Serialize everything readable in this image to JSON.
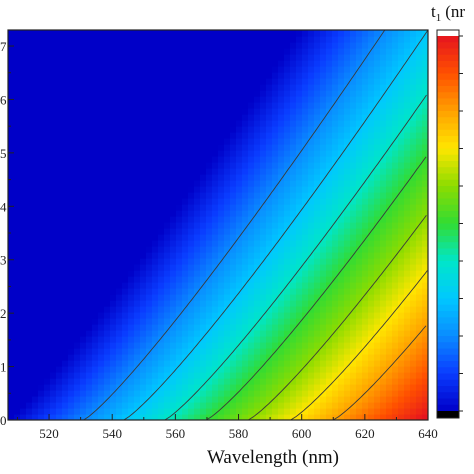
{
  "chart_data": {
    "type": "heatmap",
    "title": "",
    "xlabel": "Wavelength (nm)",
    "ylabel": "",
    "colorbar_label": "t",
    "colorbar_label_sub": "1",
    "colorbar_label_tail": "(nr",
    "x_ticks": [
      520,
      540,
      560,
      580,
      600,
      620,
      640
    ],
    "xlim": [
      507,
      640
    ],
    "y_ticks": [
      0,
      1,
      2,
      3,
      4,
      5,
      6,
      7
    ],
    "y_tick_labels": [
      "0",
      "1",
      "2",
      "3",
      "4",
      "5",
      "6",
      "7"
    ],
    "ylim": [
      0,
      7.3
    ],
    "levels": [
      0,
      0.1,
      0.2,
      0.3,
      0.4,
      0.5,
      0.6,
      0.7,
      0.8,
      0.9,
      1.0
    ],
    "contour_levels": [
      0.2,
      0.3,
      0.4,
      0.5,
      0.6,
      0.7,
      0.8
    ],
    "colormap": [
      "#0000c8",
      "#0a3cff",
      "#0a8cff",
      "#00c8ff",
      "#00e6c8",
      "#32dc32",
      "#8cdc00",
      "#ffe600",
      "#ffa000",
      "#ff5000",
      "#e6141e"
    ],
    "colorbar_bottom_color": "#000000",
    "contour_color": "#3a3a3a",
    "grid": false
  }
}
